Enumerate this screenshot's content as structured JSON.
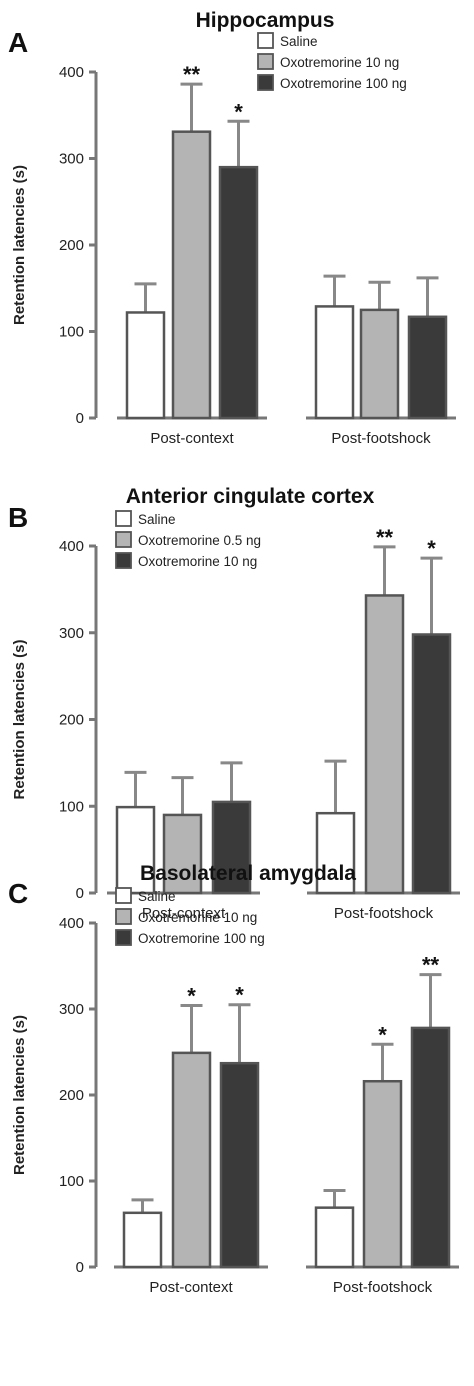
{
  "chart_data": [
    {
      "type": "bar",
      "panel_letter": "A",
      "title": "Hippocampus",
      "ylabel": "Retention latencies (s)",
      "xlabel": "",
      "ylim": [
        0,
        400
      ],
      "yticks": [
        0,
        100,
        200,
        300,
        400
      ],
      "categories": [
        "Post-context",
        "Post-footshock"
      ],
      "legend_position": "top-right",
      "series": [
        {
          "name": "Saline",
          "color": "#ffffff",
          "values": [
            122,
            129
          ],
          "errors": [
            33,
            35
          ],
          "significance": [
            "",
            ""
          ]
        },
        {
          "name": "Oxotremorine 10 ng",
          "color": "#b4b4b4",
          "values": [
            331,
            125
          ],
          "errors": [
            55,
            32
          ],
          "significance": [
            "**",
            ""
          ]
        },
        {
          "name": "Oxotremorine 100 ng",
          "color": "#3a3a3a",
          "values": [
            290,
            117
          ],
          "errors": [
            53,
            45
          ],
          "significance": [
            "*",
            ""
          ]
        }
      ]
    },
    {
      "type": "bar",
      "panel_letter": "B",
      "title": "Anterior cingulate cortex",
      "ylabel": "Retention latencies (s)",
      "xlabel": "",
      "ylim": [
        0,
        400
      ],
      "yticks": [
        0,
        100,
        200,
        300,
        400
      ],
      "categories": [
        "Post-context",
        "Post-footshock"
      ],
      "legend_position": "top-left",
      "series": [
        {
          "name": "Saline",
          "color": "#ffffff",
          "values": [
            99,
            92
          ],
          "errors": [
            40,
            60
          ],
          "significance": [
            "",
            ""
          ]
        },
        {
          "name": "Oxotremorine 0.5 ng",
          "color": "#b4b4b4",
          "values": [
            90,
            343
          ],
          "errors": [
            43,
            56
          ],
          "significance": [
            "",
            "**"
          ]
        },
        {
          "name": "Oxotremorine 10 ng",
          "color": "#3a3a3a",
          "values": [
            105,
            298
          ],
          "errors": [
            45,
            88
          ],
          "significance": [
            "",
            "*"
          ]
        }
      ]
    },
    {
      "type": "bar",
      "panel_letter": "C",
      "title": "Basolateral amygdala",
      "ylabel": "Retention latencies (s)",
      "xlabel": "",
      "ylim": [
        0,
        400
      ],
      "yticks": [
        0,
        100,
        200,
        300,
        400
      ],
      "categories": [
        "Post-context",
        "Post-footshock"
      ],
      "legend_position": "top-left",
      "series": [
        {
          "name": "Saline",
          "color": "#ffffff",
          "values": [
            63,
            69
          ],
          "errors": [
            15,
            20
          ],
          "significance": [
            "",
            ""
          ]
        },
        {
          "name": "Oxotremorine 10 ng",
          "color": "#b4b4b4",
          "values": [
            249,
            216
          ],
          "errors": [
            55,
            43
          ],
          "significance": [
            "*",
            "*"
          ]
        },
        {
          "name": "Oxotremorine 100 ng",
          "color": "#3a3a3a",
          "values": [
            237,
            278
          ],
          "errors": [
            68,
            62
          ],
          "significance": [
            "*",
            "**"
          ]
        }
      ]
    }
  ]
}
